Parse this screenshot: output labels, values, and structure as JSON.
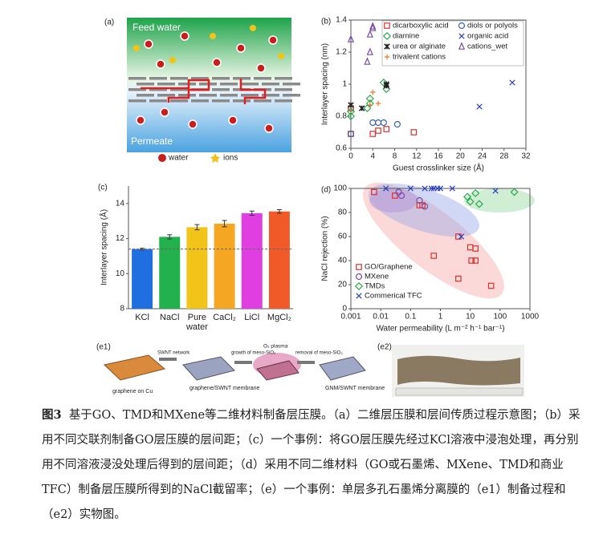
{
  "panel_a": {
    "label": "(a)",
    "feed": "Feed water",
    "permeate": "Permeate",
    "legend": [
      "water",
      "ions"
    ]
  },
  "chart_data": [
    {
      "type": "scatter",
      "label": "(b)",
      "x_label": "Guest crosslinker size (Å)",
      "y_label": "Interlayer spacing (nm)",
      "xlim": [
        0,
        32
      ],
      "xticks": [
        0,
        4,
        8,
        12,
        16,
        20,
        24,
        28,
        32
      ],
      "ylim": [
        0.6,
        1.4
      ],
      "yticks": [
        0.6,
        0.8,
        1,
        1.2,
        1.4
      ],
      "series": [
        {
          "name": "dicarboxylic acid",
          "color": "#d9302c",
          "marker": "square",
          "x": [
            0,
            4,
            5,
            6.5,
            11.5,
            0
          ],
          "values": [
            0.69,
            0.69,
            0.71,
            0.72,
            0.7,
            0.85
          ]
        },
        {
          "name": "diols or polyols",
          "color": "#3a5fb0",
          "marker": "circle",
          "x": [
            0,
            4,
            5,
            6,
            8.5
          ],
          "values": [
            0.69,
            0.76,
            0.76,
            0.76,
            0.75
          ]
        },
        {
          "name": "diamine",
          "color": "#2aa84a",
          "marker": "diamond",
          "x": [
            0,
            0,
            3,
            3.5,
            3.5,
            6,
            6.5
          ],
          "values": [
            0.83,
            0.8,
            0.85,
            0.88,
            0.91,
            1.01,
            0.97
          ]
        },
        {
          "name": "organic acid",
          "color": "#2a3fbf",
          "marker": "x",
          "x": [
            6.5,
            23.5,
            29.5
          ],
          "values": [
            1.0,
            0.86,
            1.01
          ]
        },
        {
          "name": "urea or alginate",
          "color": "#222222",
          "marker": "asterisk",
          "x": [
            0,
            2,
            6.5,
            6.5
          ],
          "values": [
            0.87,
            0.85,
            1.0,
            0.99
          ]
        },
        {
          "name": "cations_wet",
          "color": "#7a4fa8",
          "marker": "triangle",
          "x": [
            0,
            3,
            3.5,
            3.5,
            4,
            4
          ],
          "values": [
            1.28,
            1.14,
            1.2,
            1.31,
            1.35,
            1.36
          ]
        },
        {
          "name": "trivalent cations",
          "color": "#e8782a",
          "marker": "plus",
          "x": [
            3.5,
            4,
            5
          ],
          "values": [
            0.87,
            0.95,
            0.88
          ]
        }
      ]
    },
    {
      "type": "bar",
      "label": "(c)",
      "y_label": "Interlayer spacing (Å)",
      "categories": [
        "KCl",
        "NaCl",
        "Pure water",
        "CaCl₂",
        "LiCl",
        "MgCl₂"
      ],
      "values": [
        11.4,
        12.1,
        12.65,
        12.85,
        13.45,
        13.55
      ],
      "errors": [
        0.05,
        0.12,
        0.15,
        0.18,
        0.12,
        0.1
      ],
      "colors": [
        "#1f6fe0",
        "#22b14c",
        "#f2c318",
        "#f5a623",
        "#e03ee0",
        "#f05a28"
      ],
      "reference": 11.4,
      "ylim": [
        8,
        15
      ],
      "yticks": [
        8,
        10,
        12,
        14
      ]
    },
    {
      "type": "scatter",
      "label": "(d)",
      "x_label": "Water permeability (L m⁻² h⁻¹ bar⁻¹)",
      "y_label": "NaCl rejection (%)",
      "log_x": true,
      "xlim": [
        0.001,
        1000
      ],
      "xticks": [
        0.001,
        0.01,
        0.1,
        1,
        10,
        100,
        1000
      ],
      "ylim": [
        0,
        100
      ],
      "yticks": [
        0,
        20,
        40,
        60,
        80,
        100
      ],
      "legend": "lower-left",
      "series": [
        {
          "name": "GO/Graphene",
          "color": "#d9302c",
          "marker": "square",
          "x": [
            0.006,
            0.03,
            0.2,
            0.25,
            0.6,
            4,
            4,
            10,
            11,
            15,
            15,
            50
          ],
          "values": [
            97,
            94,
            86,
            86,
            44,
            60,
            25,
            51,
            40,
            50,
            40,
            19
          ]
        },
        {
          "name": "MXene",
          "color": "#7a4fa8",
          "marker": "circle",
          "x": [
            0.04,
            0.05,
            0.2,
            0.3
          ],
          "values": [
            97,
            94,
            90,
            85
          ]
        },
        {
          "name": "TMDs",
          "color": "#2aa84a",
          "marker": "diamond",
          "x": [
            8,
            10,
            15,
            20,
            300
          ],
          "values": [
            93,
            89,
            96,
            87,
            97
          ]
        },
        {
          "name": "Commerical TFC",
          "color": "#2a3fbf",
          "marker": "x",
          "x": [
            0.015,
            0.1,
            0.3,
            0.5,
            0.6,
            0.8,
            1,
            2.5,
            5,
            70
          ],
          "values": [
            100,
            100,
            100,
            100,
            100,
            100,
            100,
            100,
            60,
            98
          ]
        }
      ]
    }
  ],
  "panel_e": {
    "label_e1": "(e1)",
    "label_e2": "(e2)",
    "steps": [
      "graphene on Cu",
      "graphene/SWNT membrane",
      "GNM/SWNT membrane"
    ],
    "arrows": [
      "SWNT network",
      "growth of meso-SiO₂",
      "removal of meso-SiO₂"
    ],
    "plasma": "O₂ plasma"
  },
  "caption": {
    "figure": "图3",
    "text": "基于GO、TMD和MXene等二维材料制备层压膜。（a）二维层压膜和层间传质过程示意图；（b）采用不同交联剂制备GO层压膜的层间距；（c）一个事例：将GO层压膜先经过KCl溶液中浸泡处理，再分别用不同溶液浸没处理后得到的层间距；（d）采用不同二维材料（GO或石墨烯、MXene、TMD和商业TFC）制备层压膜所得到的NaCl截留率；（e）一个事例：单层多孔石墨烯分离膜的（e1）制备过程和（e2）实物图。"
  }
}
